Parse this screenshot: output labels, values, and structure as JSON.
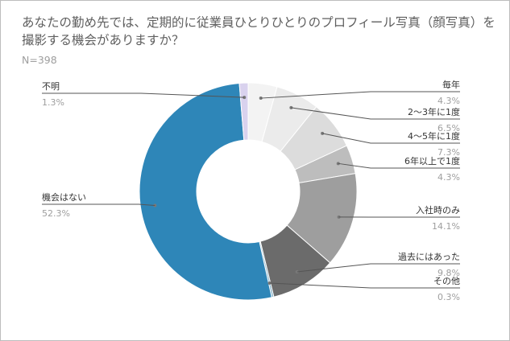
{
  "header": {
    "title": "あなたの勤め先では、定期的に従業員ひとりひとりのプロフィール写真（顔写真）を撮影する機会がありますか？",
    "sample_size": "N=398"
  },
  "chart_data": {
    "type": "pie",
    "title": "あなたの勤め先では、定期的に従業員ひとりひとりのプロフィール写真（顔写真）を撮影する機会がありますか？",
    "subtitle": "N=398",
    "donut": true,
    "slices": [
      {
        "label": "毎年",
        "value": 4.3,
        "value_label": "4.3%",
        "color": "#f3f3f3"
      },
      {
        "label": "2〜3年に1度",
        "value": 6.5,
        "value_label": "6.5%",
        "color": "#ebebeb"
      },
      {
        "label": "4〜5年に1度",
        "value": 7.3,
        "value_label": "7.3%",
        "color": "#dcdcdc"
      },
      {
        "label": "6年以上で1度",
        "value": 4.3,
        "value_label": "4.3%",
        "color": "#bdbdbd"
      },
      {
        "label": "入社時のみ",
        "value": 14.1,
        "value_label": "14.1%",
        "color": "#9e9e9e"
      },
      {
        "label": "過去にはあった",
        "value": 9.8,
        "value_label": "9.8%",
        "color": "#6b6b6b"
      },
      {
        "label": "その他",
        "value": 0.3,
        "value_label": "0.3%",
        "color": "#8ab4c9"
      },
      {
        "label": "機会はない",
        "value": 52.3,
        "value_label": "52.3%",
        "color": "#2e86b8"
      },
      {
        "label": "不明",
        "value": 1.3,
        "value_label": "1.3%",
        "color": "#d9d2ee"
      }
    ]
  }
}
